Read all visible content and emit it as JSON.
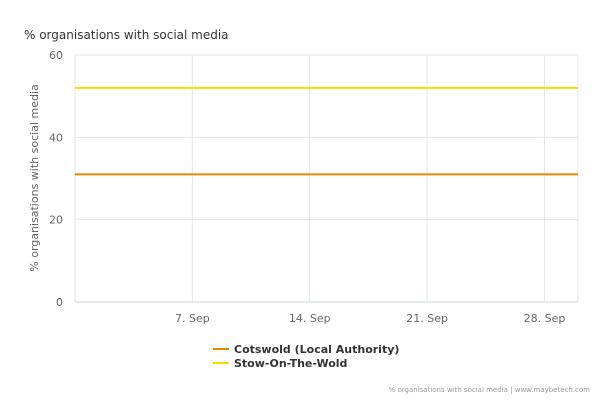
{
  "chart_data": {
    "type": "line",
    "title": "% organisations with social media",
    "ylabel": "% organisations with social media",
    "xlabel": "",
    "ylim": [
      0,
      60
    ],
    "y_ticks": [
      0,
      20,
      40,
      60
    ],
    "x_range": [
      "2024-08-31",
      "2024-09-30"
    ],
    "x_ticks": [
      {
        "date": "2024-09-07",
        "label": "7. Sep"
      },
      {
        "date": "2024-09-14",
        "label": "14. Sep"
      },
      {
        "date": "2024-09-21",
        "label": "21. Sep"
      },
      {
        "date": "2024-09-28",
        "label": "28. Sep"
      }
    ],
    "grid": true,
    "legend_position": "bottom-center",
    "series": [
      {
        "name": "Cotswold (Local Authority)",
        "color": "#e08a00",
        "points": [
          {
            "x": "2024-08-31",
            "y": 31
          },
          {
            "x": "2024-09-30",
            "y": 31
          }
        ]
      },
      {
        "name": "Stow-On-The-Wold",
        "color": "#f2e000",
        "points": [
          {
            "x": "2024-08-31",
            "y": 52
          },
          {
            "x": "2024-09-30",
            "y": 52
          }
        ]
      }
    ]
  },
  "credits": "% organisations with social media | www.maybetech.com"
}
